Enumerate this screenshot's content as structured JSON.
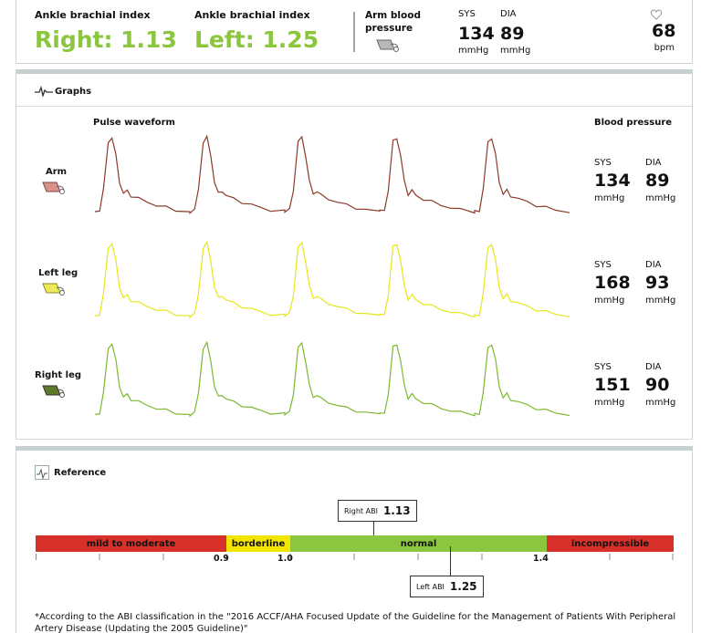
{
  "summary": {
    "right_abi_label": "Ankle brachial index",
    "right_abi_value": "Right: 1.13",
    "left_abi_label": "Ankle brachial index",
    "left_abi_value": "Left: 1.25",
    "arm_bp_label": "Arm blood pressure",
    "sys_label": "SYS",
    "sys_value": "134",
    "dia_label": "DIA",
    "dia_value": "89",
    "unit": "mmHg",
    "hr_value": "68",
    "hr_unit": "bpm",
    "icons": [
      "cuff-icon",
      "heart-icon"
    ]
  },
  "graphs": {
    "title": "Graphs",
    "waveform_header": "Pulse waveform",
    "bp_header": "Blood pressure",
    "colors": {
      "arm": "#8b3a2a",
      "left_leg": "#e6e61a",
      "right_leg": "#7db82e"
    },
    "rows": [
      {
        "label": "Arm",
        "sys_label": "SYS",
        "sys": "134",
        "dia_label": "DIA",
        "dia": "89",
        "unit": "mmHg"
      },
      {
        "label": "Left leg",
        "sys_label": "SYS",
        "sys": "168",
        "dia_label": "DIA",
        "dia": "93",
        "unit": "mmHg"
      },
      {
        "label": "Right leg",
        "sys_label": "SYS",
        "sys": "151",
        "dia_label": "DIA",
        "dia": "90",
        "unit": "mmHg"
      }
    ]
  },
  "reference": {
    "title": "Reference",
    "segments": [
      {
        "label": "mild to moderate",
        "color": "#d8312b"
      },
      {
        "label": "borderline",
        "color": "#f2e600"
      },
      {
        "label": "normal",
        "color": "#8cc63f"
      },
      {
        "label": "incompressible",
        "color": "#d8312b"
      }
    ],
    "tick_labels": [
      "0.9",
      "1.0",
      "1.4"
    ],
    "right_callout_label": "Right ABI",
    "right_callout_value": "1.13",
    "left_callout_label": "Left ABI",
    "left_callout_value": "1.25",
    "footnote": "*According to the ABI classification in the \"2016 ACCF/AHA Focused Update of the Guideline for the Management of Patients With Peripheral Artery Disease (Updating the 2005 Guideline)\""
  }
}
